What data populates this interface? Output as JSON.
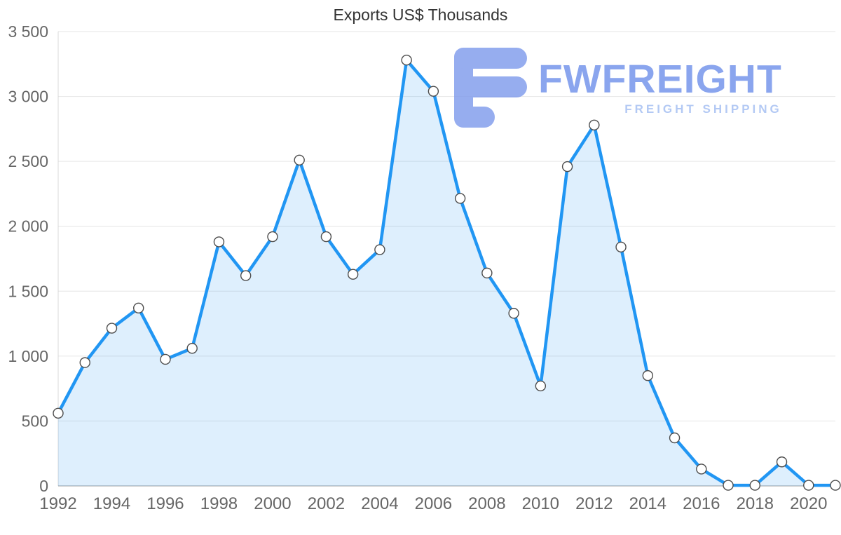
{
  "chart_data": {
    "type": "area",
    "title": "Exports US$ Thousands",
    "xlabel": "",
    "ylabel": "",
    "grid": true,
    "legend": "none",
    "x": [
      1992,
      1993,
      1994,
      1995,
      1996,
      1997,
      1998,
      1999,
      2000,
      2001,
      2002,
      2003,
      2004,
      2005,
      2006,
      2007,
      2008,
      2009,
      2010,
      2011,
      2012,
      2013,
      2014,
      2015,
      2016,
      2017,
      2018,
      2019,
      2020,
      2021
    ],
    "values": [
      560,
      950,
      1215,
      1370,
      975,
      1060,
      1880,
      1620,
      1920,
      2510,
      1920,
      1630,
      1820,
      3280,
      3040,
      2215,
      1640,
      1330,
      770,
      2460,
      2780,
      1840,
      850,
      370,
      130,
      5,
      5,
      185,
      5,
      5
    ],
    "ylim": [
      0,
      3500
    ],
    "y_tick_values": [
      0,
      500,
      1000,
      1500,
      2000,
      2500,
      3000,
      3500
    ],
    "y_tick_labels": [
      "0",
      "500",
      "1 000",
      "1 500",
      "2 000",
      "2 500",
      "3 000",
      "3 500"
    ],
    "x_tick_labels": [
      "1992",
      "1994",
      "1996",
      "1998",
      "2000",
      "2002",
      "2004",
      "2006",
      "2008",
      "2010",
      "2012",
      "2014",
      "2016",
      "2018",
      "2020"
    ],
    "line_color": "#2196f3",
    "area_color": "rgba(33,150,243,0.15)",
    "marker_fill": "#ffffff",
    "marker_stroke": "#4d4d4d",
    "grid_color": "#e6e6e6",
    "axis_label_color": "#666666",
    "title_color": "#333333"
  },
  "watermark": {
    "title": "FWFREIGHT",
    "subtitle": "FREIGHT SHIPPING",
    "logo_color": "#7d99ec"
  }
}
